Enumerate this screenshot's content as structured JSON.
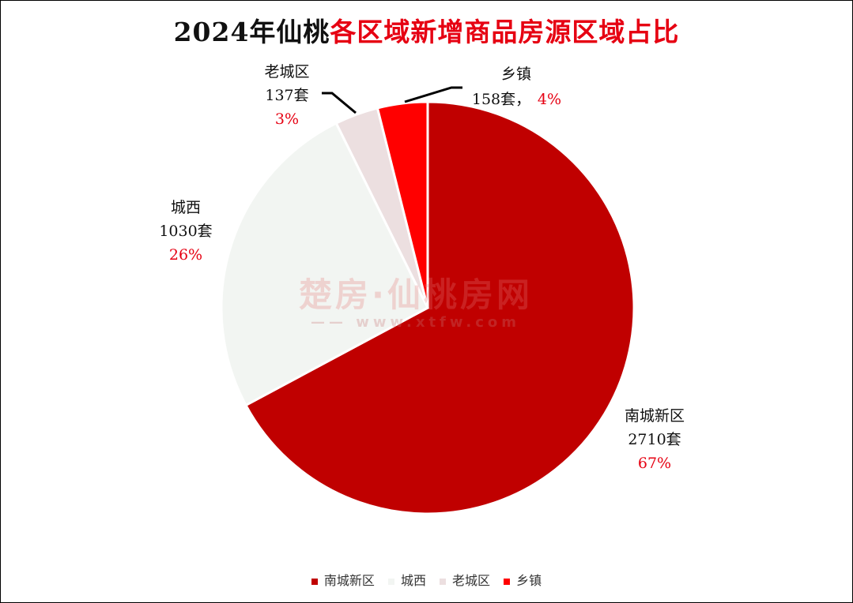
{
  "title": {
    "part1": "2024年仙桃",
    "part2": "各区域新增商品房源区域占比"
  },
  "watermark": {
    "logo_text": "楚房·仙桃房网",
    "url_text": "—— www.xtfw.com"
  },
  "colors": {
    "title_accent": "#e60012",
    "percent": "#e60012"
  },
  "chart_data": {
    "type": "pie",
    "title": "2024年仙桃各区域新增商品房源区域占比",
    "slices": [
      {
        "name": "南城新区",
        "units": "2710套",
        "value": 2710,
        "percent": "67%",
        "color": "#c00000"
      },
      {
        "name": "城西",
        "units": "1030套",
        "value": 1030,
        "percent": "26%",
        "color": "#f2f5f2"
      },
      {
        "name": "老城区",
        "units": "137套",
        "value": 137,
        "percent": "3%",
        "color": "#ecdfe0"
      },
      {
        "name": "乡镇",
        "units": "158套，",
        "value": 158,
        "percent": "4%",
        "color": "#ff0000"
      }
    ],
    "start_angle_deg": 0,
    "direction": "clockwise",
    "legend_position": "bottom"
  }
}
